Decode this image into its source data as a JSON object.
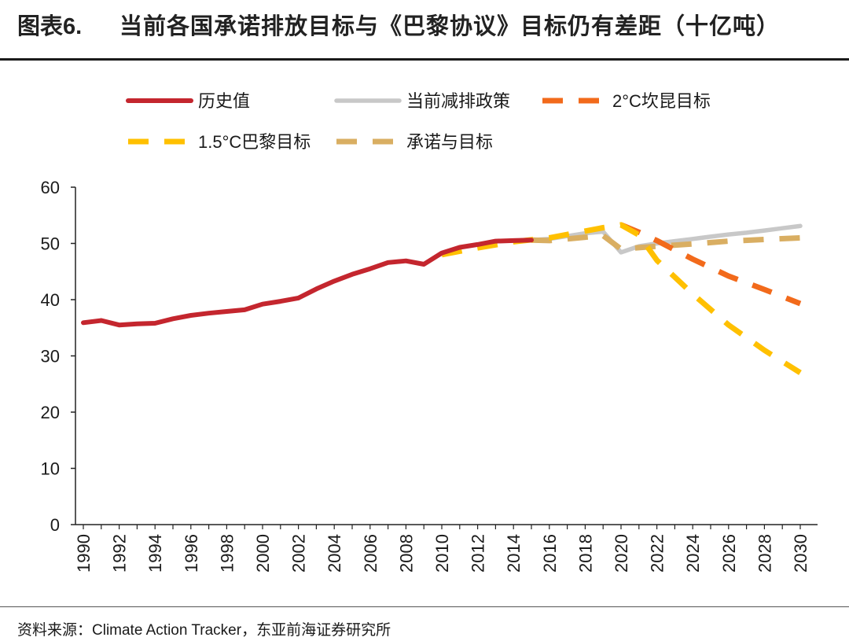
{
  "header": {
    "figure_label": "图表6.",
    "title": "当前各国承诺排放目标与《巴黎协议》目标仍有差距（十亿吨）"
  },
  "footer": {
    "source": "资料来源：Climate Action Tracker，东亚前海证券研究所"
  },
  "colors": {
    "historical": "#C4262E",
    "current_policy": "#C8C8C8",
    "target_2c": "#F26A1B",
    "target_15c": "#FFC000",
    "pledges": "#D9AE62"
  },
  "chart_data": {
    "type": "line",
    "title": "当前各国承诺排放目标与《巴黎协议》目标仍有差距（十亿吨）",
    "xlabel": "",
    "ylabel": "",
    "ylim": [
      0,
      60
    ],
    "yticks": [
      "0",
      "10",
      "20",
      "30",
      "40",
      "50",
      "60"
    ],
    "xlim": [
      1990,
      2030
    ],
    "xticks": [
      "1990",
      "1992",
      "1994",
      "1996",
      "1998",
      "2000",
      "2002",
      "2004",
      "2006",
      "2008",
      "2010",
      "2012",
      "2014",
      "2016",
      "2018",
      "2020",
      "2022",
      "2024",
      "2026",
      "2028",
      "2030"
    ],
    "grid": false,
    "legend_position": "top",
    "series": [
      {
        "name": "历史值",
        "style": "solid",
        "color_key": "historical",
        "x": [
          1990,
          1991,
          1992,
          1993,
          1994,
          1995,
          1996,
          1997,
          1998,
          1999,
          2000,
          2001,
          2002,
          2003,
          2004,
          2005,
          2006,
          2007,
          2008,
          2009,
          2010,
          2011,
          2012,
          2013,
          2014,
          2015
        ],
        "y": [
          35.9,
          36.3,
          35.5,
          35.7,
          35.8,
          36.6,
          37.2,
          37.6,
          37.9,
          38.2,
          39.2,
          39.7,
          40.3,
          41.9,
          43.3,
          44.5,
          45.5,
          46.6,
          46.9,
          46.3,
          48.3,
          49.3,
          49.8,
          50.4,
          50.5,
          50.6
        ]
      },
      {
        "name": "当前减排政策",
        "style": "solid",
        "color_key": "current_policy",
        "x": [
          2015,
          2016,
          2017,
          2018,
          2019,
          2020,
          2021,
          2022,
          2023,
          2024,
          2025,
          2026,
          2027,
          2028,
          2029,
          2030
        ],
        "y": [
          50.6,
          50.8,
          51.3,
          51.8,
          52.1,
          48.4,
          49.5,
          50.0,
          50.4,
          50.8,
          51.2,
          51.6,
          51.9,
          52.3,
          52.7,
          53.1
        ]
      },
      {
        "name": "2°C坎昆目标",
        "style": "dashed",
        "color_key": "target_2c",
        "x": [
          2020,
          2021,
          2022,
          2024,
          2026,
          2028,
          2030
        ],
        "y": [
          53.3,
          52.0,
          50.5,
          47.2,
          44.2,
          41.8,
          39.3
        ]
      },
      {
        "name": "1.5°C巴黎目标",
        "style": "dashed",
        "color_key": "target_15c",
        "x": [
          2010,
          2012,
          2014,
          2016,
          2018,
          2019,
          2020,
          2021,
          2022,
          2024,
          2026,
          2028,
          2030
        ],
        "y": [
          48.0,
          49.2,
          50.3,
          51.0,
          52.2,
          52.8,
          53.3,
          51.5,
          47.0,
          41.0,
          35.5,
          31.0,
          27.0
        ]
      },
      {
        "name": "承诺与目标",
        "style": "dashed",
        "color_key": "pledges",
        "x": [
          2015,
          2016,
          2017,
          2018,
          2019,
          2020,
          2022,
          2024,
          2026,
          2028,
          2030
        ],
        "y": [
          50.6,
          50.5,
          50.8,
          51.1,
          51.4,
          49.0,
          49.5,
          49.9,
          50.4,
          50.7,
          51.0
        ]
      }
    ]
  }
}
